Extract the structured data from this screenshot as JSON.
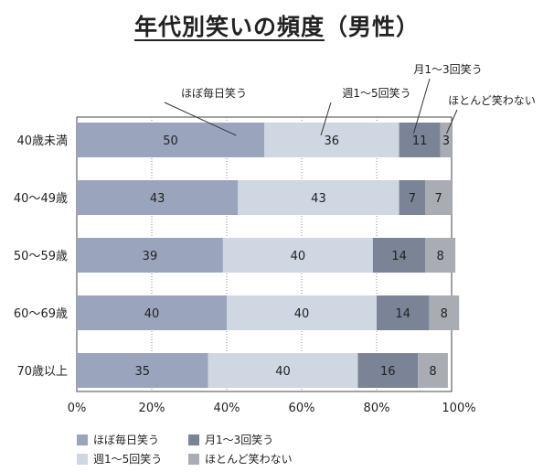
{
  "chart_data": {
    "type": "bar",
    "orientation": "horizontal-stacked-percent",
    "title": "年代別笑いの頻度",
    "subtitle": "（男性）",
    "categories": [
      "40歳未満",
      "40～49歳",
      "50～59歳",
      "60～69歳",
      "70歳以上"
    ],
    "series": [
      {
        "name": "ほぼ毎日笑う",
        "values": [
          50,
          43,
          39,
          40,
          35
        ],
        "color": "#9aa5bd"
      },
      {
        "name": "週1～5回笑う",
        "values": [
          36,
          43,
          40,
          40,
          40
        ],
        "color": "#cfd7e3"
      },
      {
        "name": "月1～3回笑う",
        "values": [
          11,
          7,
          14,
          14,
          16
        ],
        "color": "#7b8396"
      },
      {
        "name": "ほとんど笑わない",
        "values": [
          3,
          7,
          8,
          8,
          8
        ],
        "color": "#a9acb3"
      }
    ],
    "xlim": [
      0,
      100
    ],
    "xticks": [
      "0%",
      "20%",
      "40%",
      "60%",
      "80%",
      "100%"
    ],
    "grid": true,
    "legend_position": "bottom-left",
    "annotations": [
      {
        "text": "ほぼ毎日笑う",
        "series": 0
      },
      {
        "text": "週1～5回笑う",
        "series": 1
      },
      {
        "text": "月1～3回笑う",
        "series": 2
      },
      {
        "text": "ほとんど笑わない",
        "series": 3
      }
    ]
  }
}
